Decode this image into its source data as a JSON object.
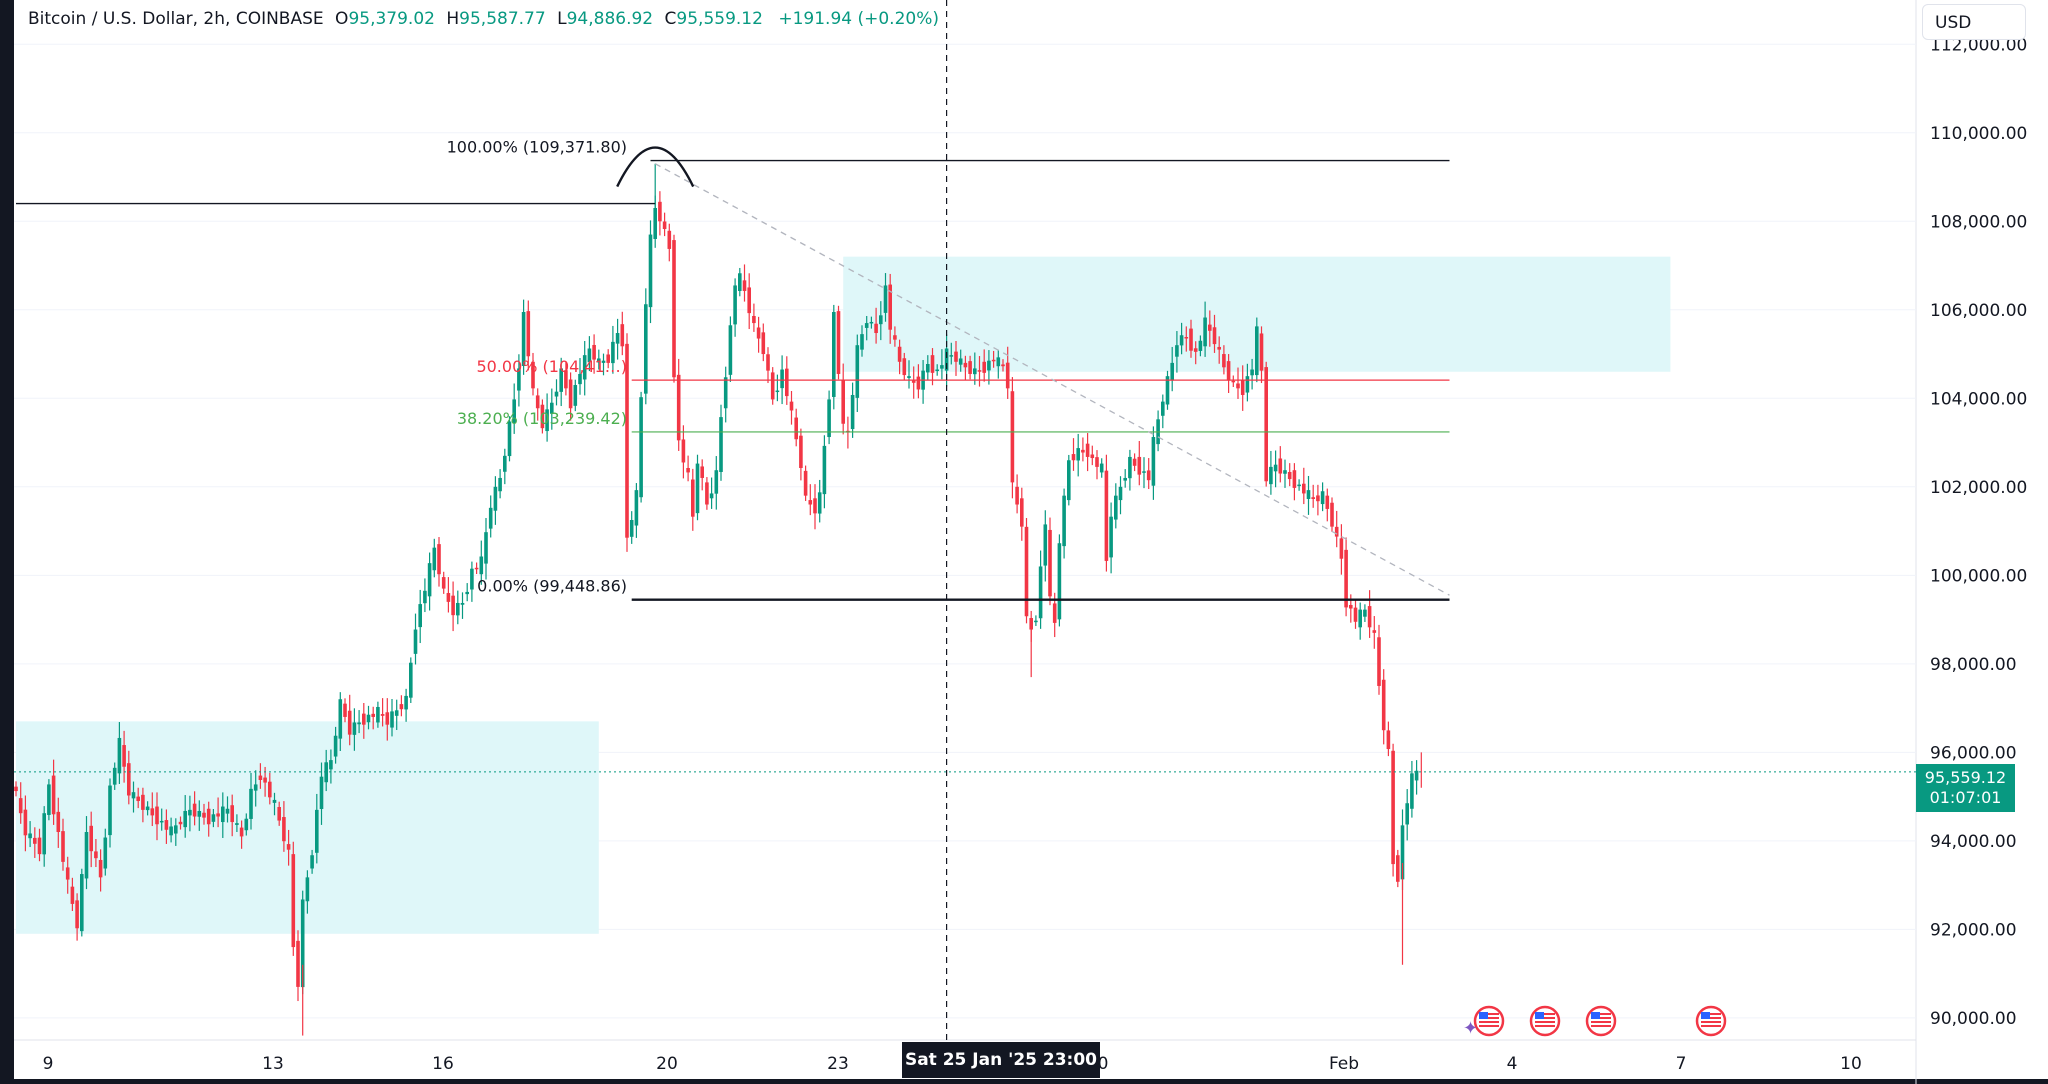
{
  "header": {
    "symbol": "Bitcoin / U.S. Dollar, 2h, COINBASE",
    "open_label": "O",
    "open": "95,379.02",
    "high_label": "H",
    "high": "95,587.77",
    "low_label": "L",
    "low": "94,886.92",
    "close_label": "C",
    "close": "95,559.12",
    "change": "+191.94 (+0.20%)"
  },
  "currency": "USD",
  "last_price": {
    "price": "95,559.12",
    "countdown": "01:07:01",
    "value": 95559.12
  },
  "crosshair_time": "Sat 25 Jan '25   23:00",
  "colors": {
    "up": "#089981",
    "down": "#f23645",
    "zone": "#dff7f9",
    "fib50": "#f23645",
    "fib382": "#4caf50"
  },
  "chart_data": {
    "type": "candlestick",
    "title": "Bitcoin / U.S. Dollar, 2h, COINBASE",
    "ylim": [
      89500,
      113000
    ],
    "y_ticks": [
      {
        "v": 112000,
        "label": "112,000.00"
      },
      {
        "v": 110000,
        "label": "110,000.00"
      },
      {
        "v": 108000,
        "label": "108,000.00"
      },
      {
        "v": 106000,
        "label": "106,000.00"
      },
      {
        "v": 104000,
        "label": "104,000.00"
      },
      {
        "v": 102000,
        "label": "102,000.00"
      },
      {
        "v": 100000,
        "label": "100,000.00"
      },
      {
        "v": 98000,
        "label": "98,000.00"
      },
      {
        "v": 96000,
        "label": "96,000.00"
      },
      {
        "v": 94000,
        "label": "94,000.00"
      },
      {
        "v": 92000,
        "label": "92,000.00"
      },
      {
        "v": 90000,
        "label": "90,000.00"
      }
    ],
    "x_ticks": [
      "9",
      "13",
      "16",
      "20",
      "23",
      "13:00",
      "Feb",
      "4",
      "7",
      "10"
    ],
    "series": [
      {
        "x": 0,
        "y": 95400
      },
      {
        "x": 3,
        "y": 94200
      },
      {
        "x": 6,
        "y": 93800
      },
      {
        "x": 8,
        "y": 95300
      },
      {
        "x": 12,
        "y": 93000
      },
      {
        "x": 14,
        "y": 92100
      },
      {
        "x": 16,
        "y": 94200
      },
      {
        "x": 19,
        "y": 93200
      },
      {
        "x": 21,
        "y": 95200
      },
      {
        "x": 23,
        "y": 96200
      },
      {
        "x": 25,
        "y": 95100
      },
      {
        "x": 30,
        "y": 94600
      },
      {
        "x": 34,
        "y": 94200
      },
      {
        "x": 38,
        "y": 94700
      },
      {
        "x": 42,
        "y": 94500
      },
      {
        "x": 46,
        "y": 94700
      },
      {
        "x": 49,
        "y": 94100
      },
      {
        "x": 51,
        "y": 95100
      },
      {
        "x": 53,
        "y": 95500
      },
      {
        "x": 56,
        "y": 94800
      },
      {
        "x": 59,
        "y": 93700
      },
      {
        "x": 60,
        "y": 91600
      },
      {
        "x": 61,
        "y": 90800
      },
      {
        "x": 62,
        "y": 92600
      },
      {
        "x": 64,
        "y": 93800
      },
      {
        "x": 66,
        "y": 95500
      },
      {
        "x": 68,
        "y": 95800
      },
      {
        "x": 70,
        "y": 97100
      },
      {
        "x": 72,
        "y": 96500
      },
      {
        "x": 74,
        "y": 96700
      },
      {
        "x": 78,
        "y": 96900
      },
      {
        "x": 80,
        "y": 96700
      },
      {
        "x": 84,
        "y": 97200
      },
      {
        "x": 86,
        "y": 98900
      },
      {
        "x": 88,
        "y": 99700
      },
      {
        "x": 90,
        "y": 100600
      },
      {
        "x": 92,
        "y": 99600
      },
      {
        "x": 94,
        "y": 99200
      },
      {
        "x": 96,
        "y": 99400
      },
      {
        "x": 98,
        "y": 100100
      },
      {
        "x": 100,
        "y": 100300
      },
      {
        "x": 102,
        "y": 101600
      },
      {
        "x": 104,
        "y": 102200
      },
      {
        "x": 106,
        "y": 103400
      },
      {
        "x": 107,
        "y": 104000
      },
      {
        "x": 108,
        "y": 104800
      },
      {
        "x": 109,
        "y": 105900
      },
      {
        "x": 111,
        "y": 104100
      },
      {
        "x": 113,
        "y": 103400
      },
      {
        "x": 115,
        "y": 103900
      },
      {
        "x": 117,
        "y": 104600
      },
      {
        "x": 119,
        "y": 103900
      },
      {
        "x": 121,
        "y": 104600
      },
      {
        "x": 123,
        "y": 105100
      },
      {
        "x": 125,
        "y": 104800
      },
      {
        "x": 127,
        "y": 104900
      },
      {
        "x": 129,
        "y": 105500
      },
      {
        "x": 130,
        "y": 105300
      },
      {
        "x": 131,
        "y": 100800
      },
      {
        "x": 133,
        "y": 101800
      },
      {
        "x": 134,
        "y": 104000
      },
      {
        "x": 135,
        "y": 106200
      },
      {
        "x": 136,
        "y": 107600
      },
      {
        "x": 137,
        "y": 108300
      },
      {
        "x": 138,
        "y": 108100
      },
      {
        "x": 140,
        "y": 107400
      },
      {
        "x": 141,
        "y": 104600
      },
      {
        "x": 142,
        "y": 103000
      },
      {
        "x": 144,
        "y": 102200
      },
      {
        "x": 145,
        "y": 101300
      },
      {
        "x": 146,
        "y": 102600
      },
      {
        "x": 148,
        "y": 101600
      },
      {
        "x": 150,
        "y": 102300
      },
      {
        "x": 151,
        "y": 103600
      },
      {
        "x": 152,
        "y": 104600
      },
      {
        "x": 154,
        "y": 106600
      },
      {
        "x": 155,
        "y": 106700
      },
      {
        "x": 156,
        "y": 106400
      },
      {
        "x": 158,
        "y": 105600
      },
      {
        "x": 160,
        "y": 105100
      },
      {
        "x": 162,
        "y": 104000
      },
      {
        "x": 164,
        "y": 104600
      },
      {
        "x": 166,
        "y": 103600
      },
      {
        "x": 168,
        "y": 102500
      },
      {
        "x": 169,
        "y": 101700
      },
      {
        "x": 171,
        "y": 101500
      },
      {
        "x": 172,
        "y": 101800
      },
      {
        "x": 174,
        "y": 104100
      },
      {
        "x": 175,
        "y": 105900
      },
      {
        "x": 177,
        "y": 103300
      },
      {
        "x": 178,
        "y": 103200
      },
      {
        "x": 180,
        "y": 105100
      },
      {
        "x": 182,
        "y": 105800
      },
      {
        "x": 184,
        "y": 105500
      },
      {
        "x": 186,
        "y": 106500
      },
      {
        "x": 187,
        "y": 105600
      },
      {
        "x": 189,
        "y": 104800
      },
      {
        "x": 191,
        "y": 104400
      },
      {
        "x": 193,
        "y": 104300
      },
      {
        "x": 195,
        "y": 104800
      },
      {
        "x": 197,
        "y": 104600
      },
      {
        "x": 199,
        "y": 105000
      },
      {
        "x": 201,
        "y": 104900
      },
      {
        "x": 203,
        "y": 104700
      },
      {
        "x": 205,
        "y": 104600
      },
      {
        "x": 207,
        "y": 104700
      },
      {
        "x": 209,
        "y": 104900
      },
      {
        "x": 211,
        "y": 104700
      },
      {
        "x": 212,
        "y": 104300
      },
      {
        "x": 213,
        "y": 102000
      },
      {
        "x": 215,
        "y": 101200
      },
      {
        "x": 216,
        "y": 99000
      },
      {
        "x": 217,
        "y": 98800
      },
      {
        "x": 218,
        "y": 99100
      },
      {
        "x": 220,
        "y": 101200
      },
      {
        "x": 221,
        "y": 99400
      },
      {
        "x": 222,
        "y": 98900
      },
      {
        "x": 223,
        "y": 100800
      },
      {
        "x": 225,
        "y": 102600
      },
      {
        "x": 227,
        "y": 102800
      },
      {
        "x": 229,
        "y": 102800
      },
      {
        "x": 230,
        "y": 102600
      },
      {
        "x": 232,
        "y": 102400
      },
      {
        "x": 233,
        "y": 100300
      },
      {
        "x": 234,
        "y": 101400
      },
      {
        "x": 236,
        "y": 102000
      },
      {
        "x": 238,
        "y": 102600
      },
      {
        "x": 240,
        "y": 102400
      },
      {
        "x": 242,
        "y": 102200
      },
      {
        "x": 243,
        "y": 103000
      },
      {
        "x": 245,
        "y": 104000
      },
      {
        "x": 247,
        "y": 104800
      },
      {
        "x": 248,
        "y": 105300
      },
      {
        "x": 250,
        "y": 105400
      },
      {
        "x": 252,
        "y": 105000
      },
      {
        "x": 254,
        "y": 105700
      },
      {
        "x": 256,
        "y": 105300
      },
      {
        "x": 258,
        "y": 104700
      },
      {
        "x": 260,
        "y": 104300
      },
      {
        "x": 262,
        "y": 104200
      },
      {
        "x": 264,
        "y": 104700
      },
      {
        "x": 265,
        "y": 105500
      },
      {
        "x": 266,
        "y": 104600
      },
      {
        "x": 267,
        "y": 102200
      },
      {
        "x": 269,
        "y": 102500
      },
      {
        "x": 271,
        "y": 102300
      },
      {
        "x": 273,
        "y": 102100
      },
      {
        "x": 275,
        "y": 101900
      },
      {
        "x": 277,
        "y": 101700
      },
      {
        "x": 279,
        "y": 101800
      },
      {
        "x": 281,
        "y": 101200
      },
      {
        "x": 283,
        "y": 100400
      },
      {
        "x": 284,
        "y": 99400
      },
      {
        "x": 286,
        "y": 99000
      },
      {
        "x": 288,
        "y": 99200
      },
      {
        "x": 290,
        "y": 98600
      },
      {
        "x": 291,
        "y": 97500
      },
      {
        "x": 292,
        "y": 96600
      },
      {
        "x": 293,
        "y": 96000
      },
      {
        "x": 294,
        "y": 93500
      },
      {
        "x": 295,
        "y": 93200
      },
      {
        "x": 296,
        "y": 94300
      },
      {
        "x": 297,
        "y": 94900
      },
      {
        "x": 298,
        "y": 95400
      },
      {
        "x": 299,
        "y": 95559
      }
    ],
    "zones": [
      {
        "x0": 0,
        "x1": 124,
        "y0": 91900,
        "y1": 96700
      },
      {
        "x0": 176,
        "x1": 352,
        "y0": 104600,
        "y1": 107200
      }
    ],
    "horizontal_lines": [
      {
        "x0": 0,
        "x1": 136,
        "y": 108400,
        "color": "#131722",
        "w": 1.4
      },
      {
        "x0": 135,
        "x1": 305,
        "y": 109371.8,
        "color": "#131722",
        "w": 1.4
      },
      {
        "x0": 131,
        "x1": 305,
        "y": 99448.86,
        "color": "#131722",
        "w": 2.4
      },
      {
        "x0": 131,
        "x1": 305,
        "y": 104410,
        "color": "#f23645",
        "w": 1.2
      },
      {
        "x0": 131,
        "x1": 305,
        "y": 103239.42,
        "color": "#4caf50",
        "w": 1.2
      }
    ],
    "fib_labels": [
      {
        "x": 130,
        "y": 109371.8,
        "text": "100.00% (109,371.80)",
        "color": "#131722"
      },
      {
        "x": 130,
        "y": 104410,
        "text": "50.00% (104,41…)",
        "color": "#f23645"
      },
      {
        "x": 130,
        "y": 103239.42,
        "text": "38.20% (103,239.42)",
        "color": "#4caf50"
      },
      {
        "x": 130,
        "y": 99448.86,
        "text": "0.00% (99,448.86)",
        "color": "#131722"
      }
    ],
    "trendline": {
      "x0": 136,
      "y0": 109300,
      "x1": 305,
      "y1": 99550
    },
    "crosshair_x": 198
  }
}
